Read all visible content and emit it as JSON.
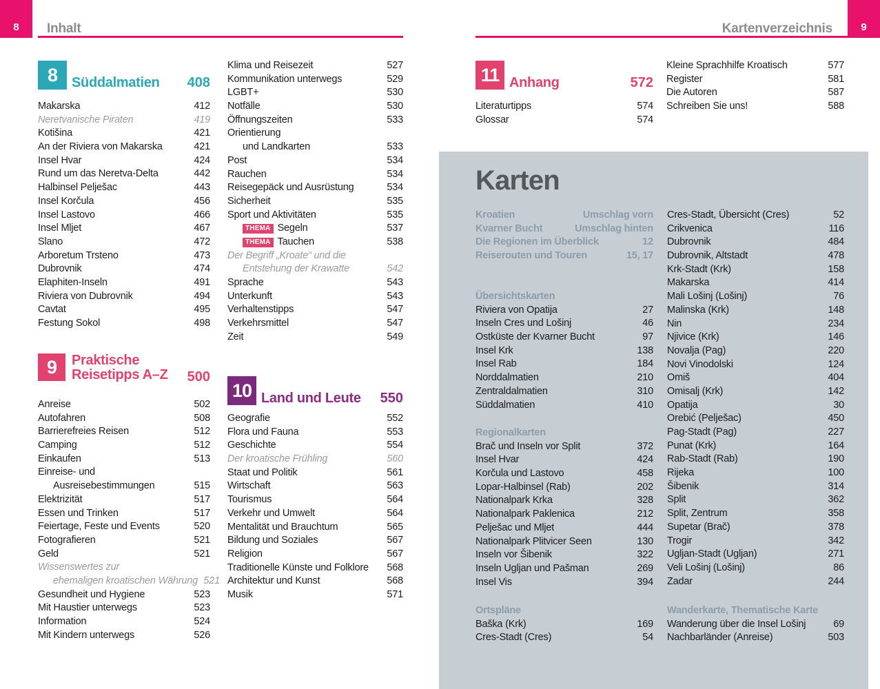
{
  "labels": {
    "thema_badge": "THEMA"
  },
  "colors": {
    "magenta": "#e8116c",
    "chapter_pink": "#e2436e",
    "teal": "#2ba8b8",
    "purple_box": "#7c2a7d",
    "purple_text": "#8d2b87",
    "panel_bg": "#c6cdd3",
    "panel_heading": "#8c9dab",
    "header_gray": "#8c8c8c",
    "italic_gray": "#9c9c9c"
  },
  "page_left": {
    "corner_number": "8",
    "header": "Inhalt"
  },
  "page_right": {
    "corner_number": "9",
    "header": "Kartenverzeichnis"
  },
  "toc": {
    "chapter8": {
      "number": "8",
      "title": "Süddalmatien",
      "page": "408",
      "entries": [
        {
          "label": "Makarska",
          "page": "412"
        },
        {
          "label": "Neretvanische Piraten",
          "page": "419",
          "italic": true
        },
        {
          "label": "Kotišina",
          "page": "421"
        },
        {
          "label": "An der Riviera von Makarska",
          "page": "421"
        },
        {
          "label": "Insel Hvar",
          "page": "424"
        },
        {
          "label": "Rund um das Neretva-Delta",
          "page": "442"
        },
        {
          "label": "Halbinsel Pelješac",
          "page": "443"
        },
        {
          "label": "Insel Korčula",
          "page": "456"
        },
        {
          "label": "Insel Lastovo",
          "page": "466"
        },
        {
          "label": "Insel Mljet",
          "page": "467"
        },
        {
          "label": "Slano",
          "page": "472"
        },
        {
          "label": "Arboretum Trsteno",
          "page": "473"
        },
        {
          "label": "Dubrovnik",
          "page": "474"
        },
        {
          "label": "Elaphiten-Inseln",
          "page": "491"
        },
        {
          "label": "Riviera von Dubrovnik",
          "page": "494"
        },
        {
          "label": "Cavtat",
          "page": "495"
        },
        {
          "label": "Festung Sokol",
          "page": "498"
        }
      ]
    },
    "chapter9": {
      "number": "9",
      "title_line1": "Praktische",
      "title_line2": "Reisetipps A–Z",
      "page": "500",
      "entries": [
        {
          "label": "Anreise",
          "page": "502"
        },
        {
          "label": "Autofahren",
          "page": "508"
        },
        {
          "label": "Barrierefreies Reisen",
          "page": "512"
        },
        {
          "label": "Camping",
          "page": "512"
        },
        {
          "label": "Einkaufen",
          "page": "513"
        },
        {
          "label": "Einreise- und",
          "label2": "Ausreisebestimmungen",
          "page": "515"
        },
        {
          "label": "Elektrizität",
          "page": "517"
        },
        {
          "label": "Essen und Trinken",
          "page": "517"
        },
        {
          "label": "Feiertage, Feste und Events",
          "page": "520"
        },
        {
          "label": "Fotografieren",
          "page": "521"
        },
        {
          "label": "Geld",
          "page": "521"
        },
        {
          "label": "Wissenswertes zur",
          "label2": "ehemaligen kroatischen Währung",
          "page": "521",
          "italic": true
        },
        {
          "label": "Gesundheit und Hygiene",
          "page": "523"
        },
        {
          "label": "Mit Haustier unterwegs",
          "page": "523"
        },
        {
          "label": "Information",
          "page": "524"
        },
        {
          "label": "Mit Kindern unterwegs",
          "page": "526"
        }
      ],
      "entries_continued": [
        {
          "label": "Klima und Reisezeit",
          "page": "527"
        },
        {
          "label": "Kommunikation unterwegs",
          "page": "529"
        },
        {
          "label": "LGBT+",
          "page": "530"
        },
        {
          "label": "Notfälle",
          "page": "530"
        },
        {
          "label": "Öffnungszeiten",
          "page": "533"
        },
        {
          "label": "Orientierung",
          "label2": "und Landkarten",
          "page": "533"
        },
        {
          "label": "Post",
          "page": "534"
        },
        {
          "label": "Rauchen",
          "page": "534"
        },
        {
          "label": "Reisegepäck und Ausrüstung",
          "page": "534"
        },
        {
          "label": "Sicherheit",
          "page": "535"
        },
        {
          "label": "Sport und Aktivitäten",
          "page": "535"
        },
        {
          "label": "Segeln",
          "page": "537",
          "thema": true
        },
        {
          "label": "Tauchen",
          "page": "538",
          "thema": true
        },
        {
          "label": "Der Begriff „Kroate“ und die",
          "label2": "Entstehung der Krawatte",
          "page": "542",
          "italic": true
        },
        {
          "label": "Sprache",
          "page": "543"
        },
        {
          "label": "Unterkunft",
          "page": "543"
        },
        {
          "label": "Verhaltenstipps",
          "page": "547"
        },
        {
          "label": "Verkehrsmittel",
          "page": "547"
        },
        {
          "label": "Zeit",
          "page": "549"
        }
      ]
    },
    "chapter10": {
      "number": "10",
      "title": "Land und Leute",
      "page": "550",
      "entries": [
        {
          "label": "Geografie",
          "page": "552"
        },
        {
          "label": "Flora und Fauna",
          "page": "553"
        },
        {
          "label": "Geschichte",
          "page": "554"
        },
        {
          "label": "Der kroatische Frühling",
          "page": "560",
          "italic": true
        },
        {
          "label": "Staat und Politik",
          "page": "561"
        },
        {
          "label": "Wirtschaft",
          "page": "563"
        },
        {
          "label": "Tourismus",
          "page": "564"
        },
        {
          "label": "Verkehr und Umwelt",
          "page": "564"
        },
        {
          "label": "Mentalität und Brauchtum",
          "page": "565"
        },
        {
          "label": "Bildung und Soziales",
          "page": "567"
        },
        {
          "label": "Religion",
          "page": "567"
        },
        {
          "label": "Traditionelle Künste und Folklore",
          "page": "568"
        },
        {
          "label": "Architektur und Kunst",
          "page": "568"
        },
        {
          "label": "Musik",
          "page": "571"
        }
      ]
    },
    "chapter11": {
      "number": "11",
      "title": "Anhang",
      "page": "572",
      "entries_left": [
        {
          "label": "Literaturtipps",
          "page": "574"
        },
        {
          "label": "Glossar",
          "page": "574"
        }
      ],
      "entries_right": [
        {
          "label": "Kleine Sprachhilfe Kroatisch",
          "page": "577"
        },
        {
          "label": "Register",
          "page": "581"
        },
        {
          "label": "Die Autoren",
          "page": "587"
        },
        {
          "label": "Schreiben Sie uns!",
          "page": "588"
        }
      ]
    }
  },
  "karten": {
    "title": "Karten",
    "front_items": [
      {
        "label": "Kroatien",
        "page": "Umschlag vorn"
      },
      {
        "label": "Kvarner Bucht",
        "page": "Umschlag hinten"
      },
      {
        "label": "Die Regionen im Überblick",
        "page": "12"
      },
      {
        "label": "Reiserouten und Touren",
        "page": "15, 17"
      }
    ],
    "left_sections": [
      {
        "heading": "Übersichtskarten",
        "entries": [
          {
            "label": "Riviera von Opatija",
            "page": "27"
          },
          {
            "label": "Inseln Cres und Lošinj",
            "page": "46"
          },
          {
            "label": "Ostküste der Kvarner Bucht",
            "page": "97"
          },
          {
            "label": "Insel Krk",
            "page": "138"
          },
          {
            "label": "Insel Rab",
            "page": "184"
          },
          {
            "label": "Norddalmatien",
            "page": "210"
          },
          {
            "label": "Zentraldalmatien",
            "page": "310"
          },
          {
            "label": "Süddalmatien",
            "page": "410"
          }
        ]
      },
      {
        "heading": "Regionalkarten",
        "entries": [
          {
            "label": "Brač und Inseln vor Split",
            "page": "372"
          },
          {
            "label": "Insel Hvar",
            "page": "424"
          },
          {
            "label": "Korčula und Lastovo",
            "page": "458"
          },
          {
            "label": "Lopar-Halbinsel (Rab)",
            "page": "202"
          },
          {
            "label": "Nationalpark Krka",
            "page": "328"
          },
          {
            "label": "Nationalpark Paklenica",
            "page": "212"
          },
          {
            "label": "Pelješac und Mljet",
            "page": "444"
          },
          {
            "label": "Nationalpark Plitvicer Seen",
            "page": "130"
          },
          {
            "label": "Inseln vor Šibenik",
            "page": "322"
          },
          {
            "label": "Inseln Ugljan und Pašman",
            "page": "269"
          },
          {
            "label": "Insel Vis",
            "page": "394"
          }
        ]
      },
      {
        "heading": "Ortspläne",
        "entries": [
          {
            "label": "Baška (Krk)",
            "page": "169"
          },
          {
            "label": "Cres-Stadt (Cres)",
            "page": "54"
          }
        ]
      }
    ],
    "right_sections": [
      {
        "heading": "",
        "entries": [
          {
            "label": "Cres-Stadt, Übersicht (Cres)",
            "page": "52"
          },
          {
            "label": "Crikvenica",
            "page": "116"
          },
          {
            "label": "Dubrovnik",
            "page": "484"
          },
          {
            "label": "Dubrovnik, Altstadt",
            "page": "478"
          },
          {
            "label": "Krk-Stadt (Krk)",
            "page": "158"
          },
          {
            "label": "Makarska",
            "page": "414"
          },
          {
            "label": "Mali Lošinj (Lošinj)",
            "page": "76"
          },
          {
            "label": "Malinska (Krk)",
            "page": "148"
          },
          {
            "label": "Nin",
            "page": "234"
          },
          {
            "label": "Njivice (Krk)",
            "page": "146"
          },
          {
            "label": "Novalja (Pag)",
            "page": "220"
          },
          {
            "label": "Novi Vinodolski",
            "page": "124"
          },
          {
            "label": "Omiš",
            "page": "404"
          },
          {
            "label": "Omisalj (Krk)",
            "page": "142"
          },
          {
            "label": "Opatija",
            "page": "30"
          },
          {
            "label": "Orebić (Pelješac)",
            "page": "450"
          },
          {
            "label": "Pag-Stadt (Pag)",
            "page": "227"
          },
          {
            "label": "Punat (Krk)",
            "page": "164"
          },
          {
            "label": "Rab-Stadt (Rab)",
            "page": "190"
          },
          {
            "label": "Rijeka",
            "page": "100"
          },
          {
            "label": "Šibenik",
            "page": "314"
          },
          {
            "label": "Split",
            "page": "362"
          },
          {
            "label": "Split, Zentrum",
            "page": "358"
          },
          {
            "label": "Supetar (Brač)",
            "page": "378"
          },
          {
            "label": "Trogir",
            "page": "342"
          },
          {
            "label": "Ugljan-Stadt (Ugljan)",
            "page": "271"
          },
          {
            "label": "Veli Lošinj (Lošinj)",
            "page": "86"
          },
          {
            "label": "Zadar",
            "page": "244"
          }
        ]
      },
      {
        "heading": "Wanderkarte, Thematische Karte",
        "entries": [
          {
            "label": "Wanderung über die Insel Lošinj",
            "page": "69"
          },
          {
            "label": "Nachbarländer (Anreise)",
            "page": "503"
          }
        ]
      }
    ]
  }
}
